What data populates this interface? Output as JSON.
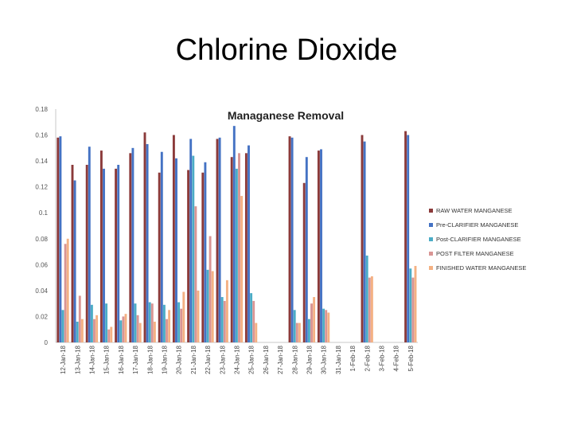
{
  "slide": {
    "title": "Chlorine Dioxide"
  },
  "chart_data": {
    "type": "bar",
    "title": "Managanese Removal",
    "xlabel": "",
    "ylabel": "",
    "ylim": [
      0,
      0.18
    ],
    "yticks": [
      "0",
      "0.02",
      "0.04",
      "0.06",
      "0.08",
      "0.1",
      "0.12",
      "0.14",
      "0.16",
      "0.18"
    ],
    "grid": false,
    "legend_position": "right",
    "categories": [
      "12-Jan-18",
      "13-Jan-18",
      "14-Jan-18",
      "15-Jan-18",
      "16-Jan-18",
      "17-Jan-18",
      "18-Jan-18",
      "19-Jan-18",
      "20-Jan-18",
      "21-Jan-18",
      "22-Jan-18",
      "23-Jan-18",
      "24-Jan-18",
      "25-Jan-18",
      "26-Jan-18",
      "27-Jan-18",
      "28-Jan-18",
      "29-Jan-18",
      "30-Jan-18",
      "31-Jan-18",
      "1-Feb-18",
      "2-Feb-18",
      "3-Feb-18",
      "4-Feb-18",
      "5-Feb-18"
    ],
    "series": [
      {
        "name": "RAW WATER MANGANESE",
        "color": "#8B3A3A",
        "values": [
          0.158,
          0.137,
          0.137,
          0.148,
          0.134,
          0.146,
          0.162,
          0.131,
          0.16,
          0.133,
          0.131,
          0.157,
          0.143,
          0.146,
          null,
          null,
          0.159,
          0.123,
          0.148,
          null,
          null,
          0.16,
          null,
          null,
          0.163
        ]
      },
      {
        "name": "Pre-CLARIFIER MANGANESE",
        "color": "#4472C4",
        "values": [
          0.159,
          0.125,
          0.151,
          0.134,
          0.137,
          0.15,
          0.153,
          0.147,
          0.142,
          0.157,
          0.139,
          0.158,
          0.167,
          0.152,
          null,
          null,
          0.158,
          0.143,
          0.149,
          null,
          null,
          0.155,
          null,
          null,
          0.16
        ]
      },
      {
        "name": "Post-CLARIFIER MANGANESE",
        "color": "#4BACC6",
        "values": [
          0.025,
          0.016,
          0.029,
          0.03,
          0.017,
          0.03,
          0.031,
          0.029,
          0.031,
          0.144,
          0.056,
          0.035,
          0.134,
          0.038,
          null,
          null,
          0.025,
          0.018,
          0.026,
          null,
          null,
          0.067,
          null,
          null,
          0.057
        ]
      },
      {
        "name": "POST FILTER MANGANESE",
        "color": "#D99594",
        "values": [
          0.076,
          0.036,
          0.018,
          0.01,
          0.02,
          0.021,
          0.03,
          0.018,
          0.026,
          0.105,
          0.082,
          0.032,
          0.146,
          0.032,
          null,
          null,
          0.015,
          0.03,
          0.025,
          null,
          null,
          0.05,
          null,
          null,
          0.05
        ]
      },
      {
        "name": "FINISHED WATER MANGANESE",
        "color": "#F4B183",
        "values": [
          0.08,
          0.018,
          0.021,
          0.012,
          0.022,
          0.015,
          0.016,
          0.025,
          0.039,
          0.04,
          0.055,
          0.048,
          0.113,
          0.015,
          null,
          null,
          0.015,
          0.035,
          0.023,
          null,
          null,
          0.051,
          null,
          null,
          0.059
        ]
      }
    ]
  }
}
